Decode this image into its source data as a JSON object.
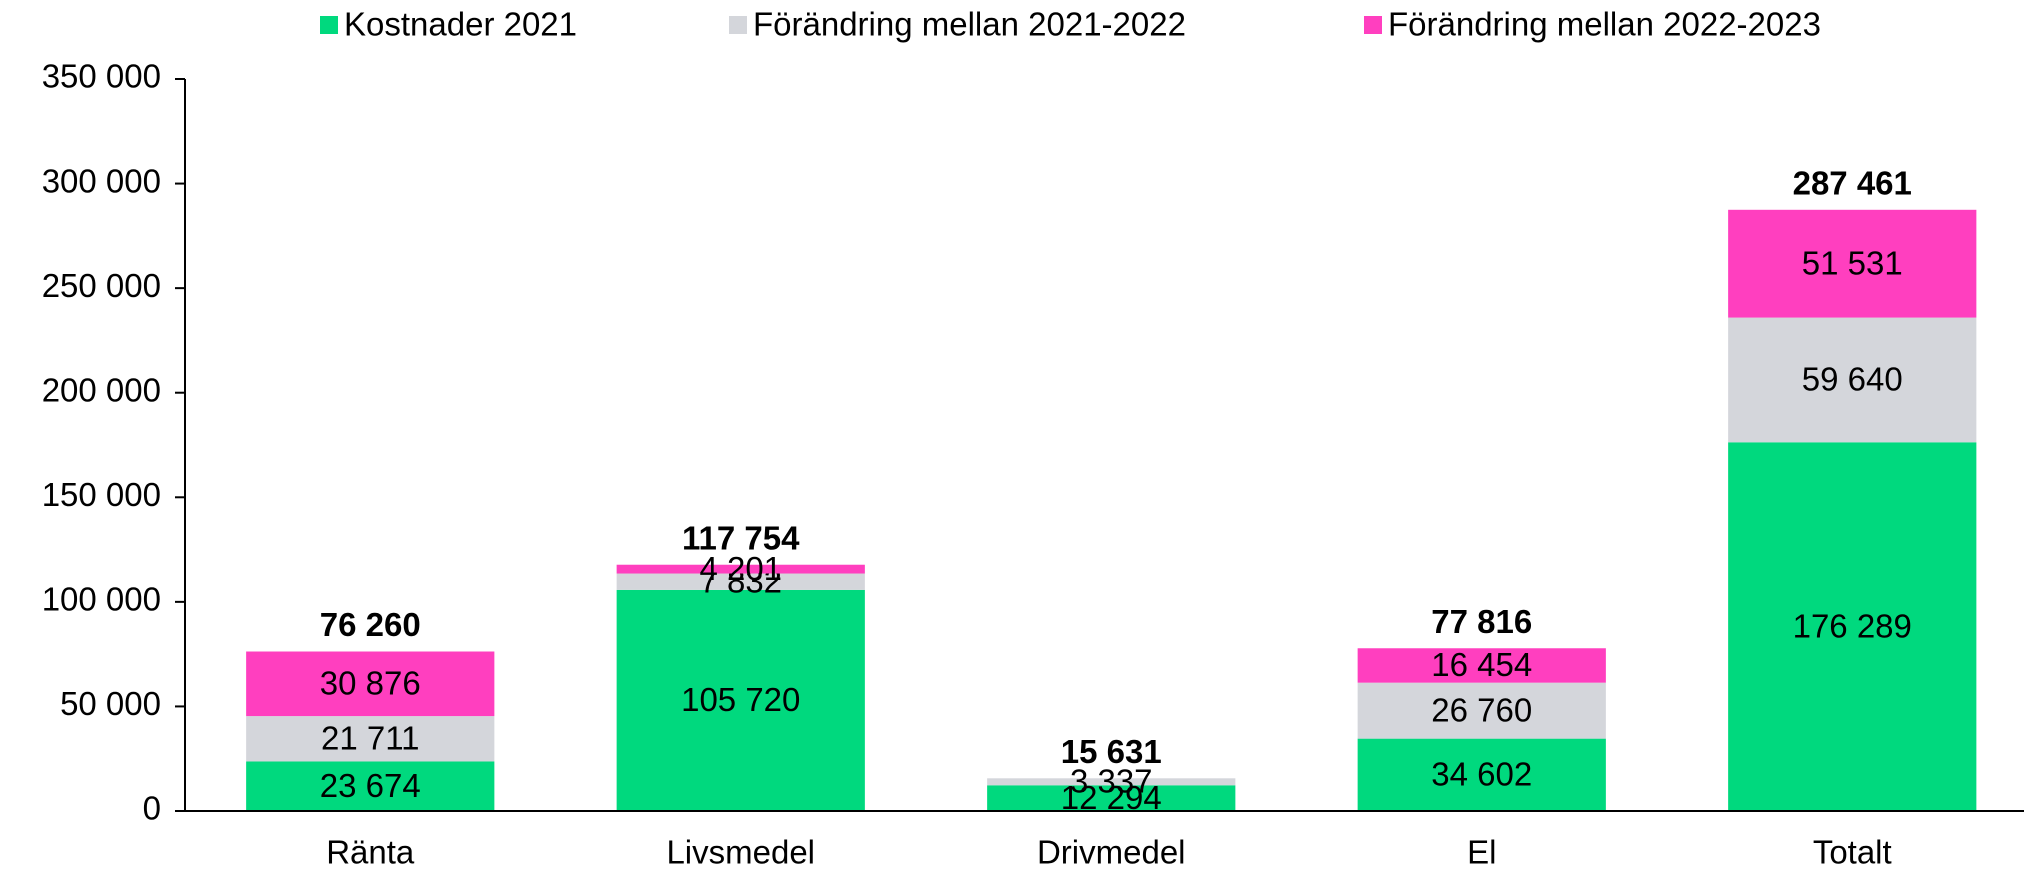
{
  "chart_data": {
    "type": "stacked_bar",
    "categories": [
      "Ränta",
      "Livsmedel",
      "Drivmedel",
      "El",
      "Totalt"
    ],
    "series": [
      {
        "name": "Kostnader 2021",
        "color": "#00d97e",
        "values": [
          23674,
          105720,
          12294,
          34602,
          176289
        ],
        "value_labels": [
          "23 674",
          "105 720",
          "12 294",
          "34 602",
          "176 289"
        ]
      },
      {
        "name": "Förändring mellan 2021-2022",
        "color": "#d4d6db",
        "values": [
          21711,
          7832,
          3337,
          26760,
          59640
        ],
        "value_labels": [
          "21 711",
          "7 832",
          "3 337",
          "26 760",
          "59 640"
        ]
      },
      {
        "name": "Förändring mellan 2022-2023",
        "color": "#ff3fbf",
        "values": [
          30876,
          4201,
          0,
          16454,
          51531
        ],
        "value_labels": [
          "30 876",
          "4 201",
          null,
          "16 454",
          "51 531"
        ]
      }
    ],
    "totals": [
      76260,
      117754,
      15631,
      77816,
      287461
    ],
    "total_labels": [
      "76 260",
      "117 754",
      "15 631",
      "77 816",
      "287 461"
    ],
    "ylim": [
      0,
      350000
    ],
    "yticks": [
      0,
      {
        "value": 50000,
        "label": "50 000"
      },
      {
        "value": 100000,
        "label": "100 000"
      },
      {
        "value": 150000,
        "label": "150 000"
      },
      {
        "value": 200000,
        "label": "200 000"
      },
      {
        "value": 250000,
        "label": "250 000"
      },
      {
        "value": 300000,
        "label": "300 000"
      },
      {
        "value": 350000,
        "label": "350 000"
      }
    ],
    "legend": "top",
    "grid": false
  }
}
